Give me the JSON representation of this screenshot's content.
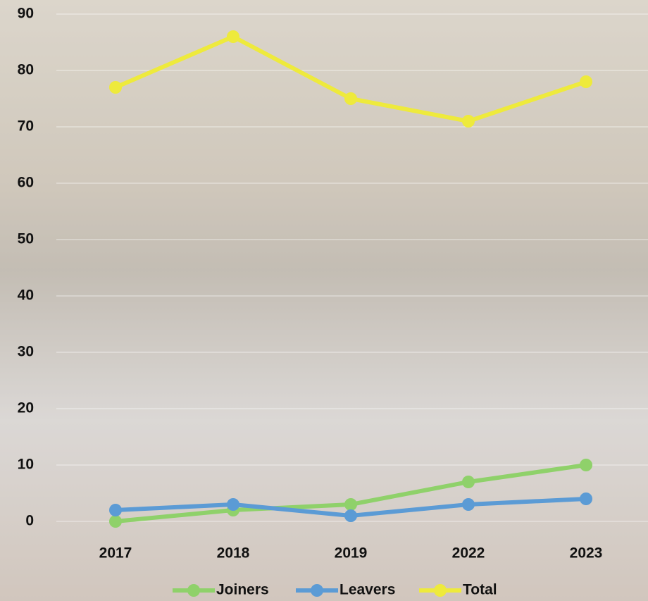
{
  "chart_data": {
    "type": "line",
    "categories": [
      "2017",
      "2018",
      "2019",
      "2022",
      "2023"
    ],
    "series": [
      {
        "name": "Joiners",
        "color": "#8fd16a",
        "values": [
          0,
          2,
          3,
          7,
          10
        ]
      },
      {
        "name": "Leavers",
        "color": "#5b9bd5",
        "values": [
          2,
          3,
          1,
          3,
          4
        ]
      },
      {
        "name": "Total",
        "color": "#eeea3c",
        "values": [
          77,
          86,
          75,
          71,
          78
        ]
      }
    ],
    "ylim": [
      0,
      90
    ],
    "yticks": [
      0,
      10,
      20,
      30,
      40,
      50,
      60,
      70,
      80,
      90
    ],
    "grid": true,
    "legend": "bottom"
  }
}
